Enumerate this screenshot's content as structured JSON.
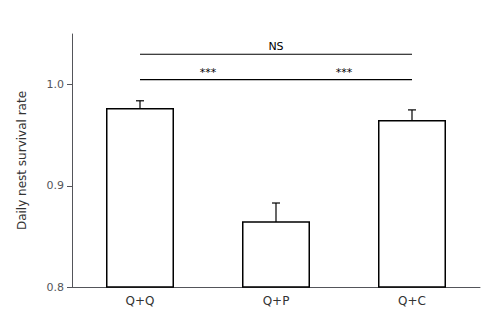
{
  "chart_data": {
    "type": "bar",
    "categories": [
      "Q+Q",
      "Q+P",
      "Q+C"
    ],
    "values": [
      0.977,
      0.865,
      0.965
    ],
    "errors": [
      0.007,
      0.018,
      0.01
    ],
    "color": "#ffffff",
    "ylabel": "Daily nest survival rate",
    "ylim": [
      0.8,
      1.05
    ],
    "yticks": [
      0.8,
      0.9,
      {
        "value": 1.0,
        "label": "1.0"
      }
    ],
    "grid": false,
    "annotations": [
      {
        "label": "***",
        "from": "Q+Q",
        "to": "Q+P",
        "y": 1.005
      },
      {
        "label": "***",
        "from": "Q+P",
        "to": "Q+C",
        "y": 1.005
      },
      {
        "label": "NS",
        "from": "Q+Q",
        "to": "Q+C",
        "y": 1.03
      }
    ]
  }
}
